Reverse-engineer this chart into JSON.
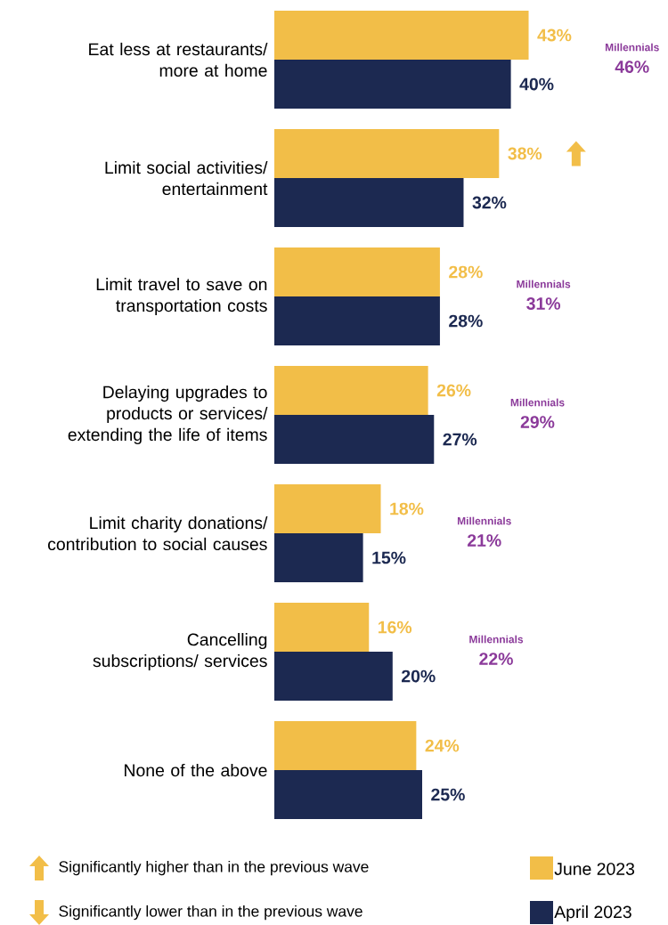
{
  "chart_data": {
    "type": "bar",
    "orientation": "horizontal",
    "legend": "bottom right",
    "categories": [
      "Eat less at restaurants/ more at home",
      "Limit social activities/ entertainment",
      "Limit travel to save on transportation costs",
      "Delaying upgrades to products or services/ extending the life of items",
      "Limit charity donations/ contribution to social causes",
      "Cancelling subscriptions/ services",
      "None of the above"
    ],
    "series": [
      {
        "name": "June 2023",
        "color": "#f2be48",
        "values": [
          43,
          38,
          28,
          26,
          18,
          16,
          24
        ],
        "value_labels": [
          "43%",
          "38%",
          "28%",
          "26%",
          "18%",
          "16%",
          "24%"
        ]
      },
      {
        "name": "April 2023",
        "color": "#1c2951",
        "values": [
          40,
          32,
          28,
          27,
          15,
          20,
          25
        ],
        "value_labels": [
          "40%",
          "32%",
          "28%",
          "27%",
          "15%",
          "20%",
          "25%"
        ]
      }
    ],
    "annotations": [
      "Millennials",
      "46%",
      "Millennials",
      "31%",
      "Millennials",
      "29%",
      "Millennials",
      "21%",
      "Millennials",
      "22%",
      "Significantly higher than in the previous wave",
      "Significantly lower than in the previous wave"
    ]
  }
}
